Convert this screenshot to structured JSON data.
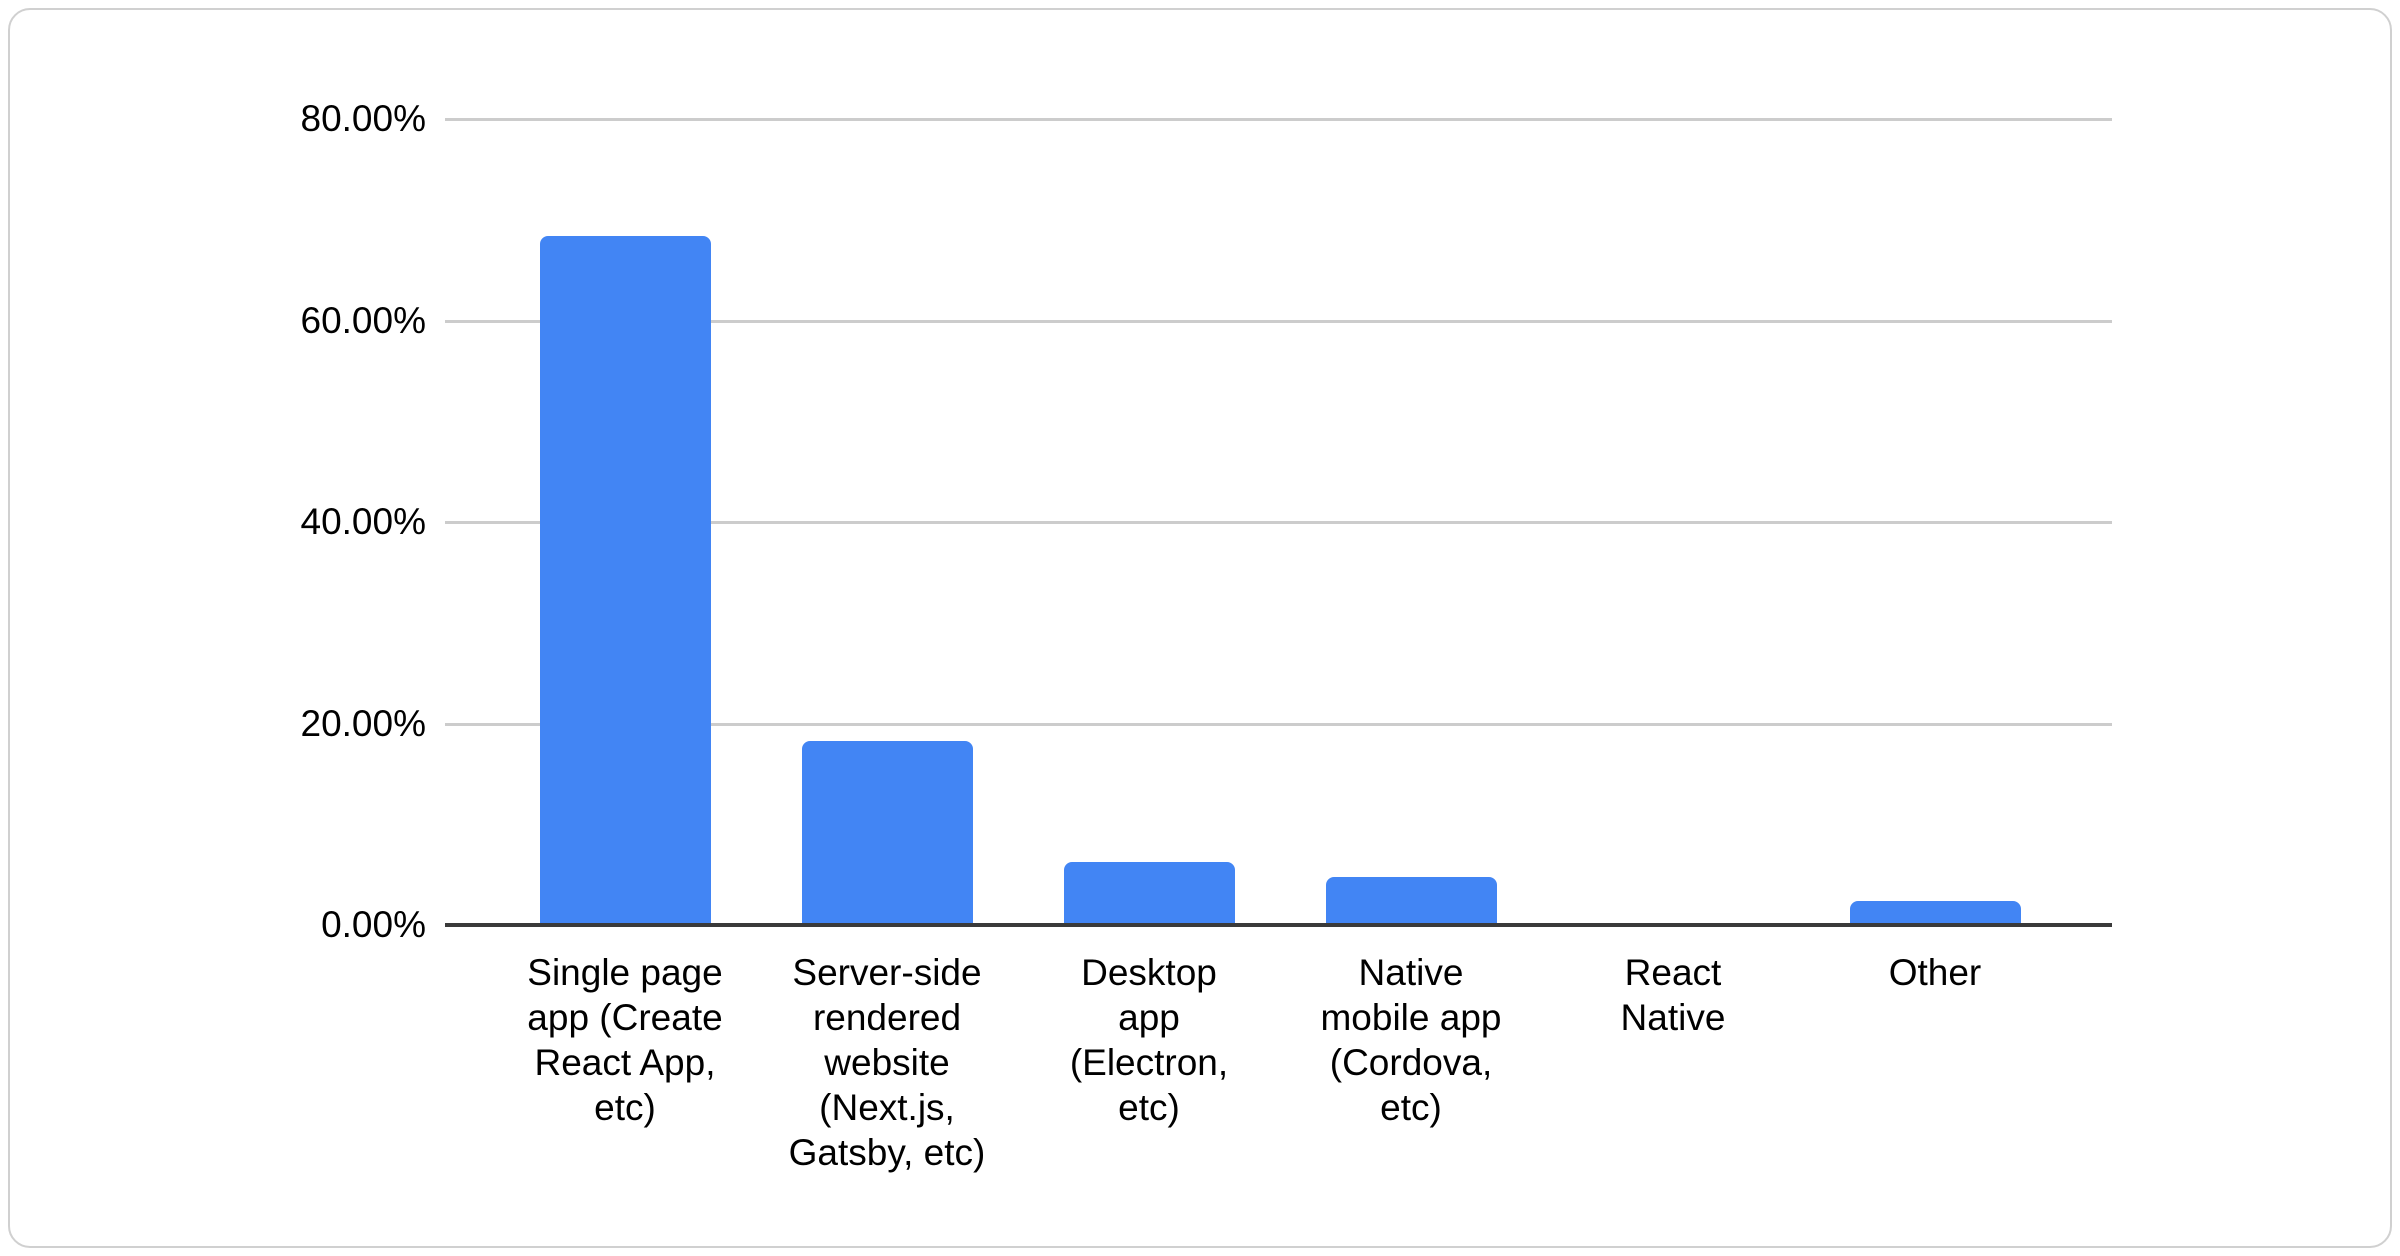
{
  "page": {
    "background": "#ffffff"
  },
  "card": {
    "background": "#ffffff",
    "border_color": "#d0d0d0"
  },
  "chart_data": {
    "type": "bar",
    "title": "",
    "xlabel": "",
    "ylabel": "",
    "categories": [
      "Single page app (Create React App, etc)",
      "Server-side rendered website (Next.js, Gatsby, etc)",
      "Desktop app (Electron, etc)",
      "Native mobile app (Cordova, etc)",
      "React Native",
      "Other"
    ],
    "category_labels_wrapped": [
      "Single page\napp (Create\nReact App,\netc)",
      "Server-side\nrendered\nwebsite\n(Next.js,\nGatsby, etc)",
      "Desktop\napp\n(Electron,\netc)",
      "Native\nmobile app\n(Cordova,\netc)",
      "React\nNative",
      "Other"
    ],
    "values": [
      68.4,
      18.3,
      6.3,
      4.8,
      0,
      2.4
    ],
    "unit": "%",
    "y_ticks": [
      "80.00%",
      "60.00%",
      "40.00%",
      "20.00%",
      "0.00%"
    ],
    "ylim": [
      0,
      80
    ],
    "grid": true,
    "legend": "none",
    "bar_color": "#4285f4",
    "gridline_color": "#cccccc",
    "axis_line_color": "#3a3a3a",
    "label_color": "#000000"
  }
}
